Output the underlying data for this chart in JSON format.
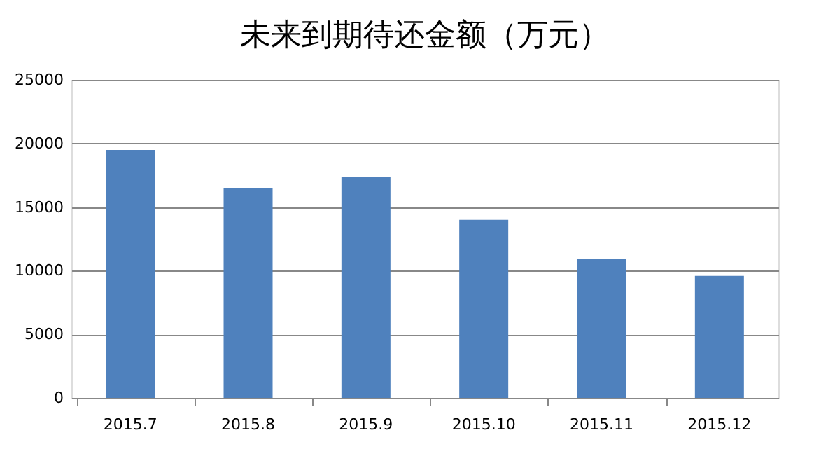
{
  "chart_data": {
    "type": "bar",
    "title": "未来到期待还金额（万元）",
    "categories": [
      "2015.7",
      "2015.8",
      "2015.9",
      "2015.10",
      "2015.11",
      "2015.12"
    ],
    "values": [
      19500,
      16500,
      17400,
      14000,
      10900,
      9600
    ],
    "color": "#4f81bd",
    "ylim": [
      0,
      25000
    ],
    "yticks": [
      0,
      5000,
      10000,
      15000,
      20000,
      25000
    ],
    "grid": "y"
  }
}
